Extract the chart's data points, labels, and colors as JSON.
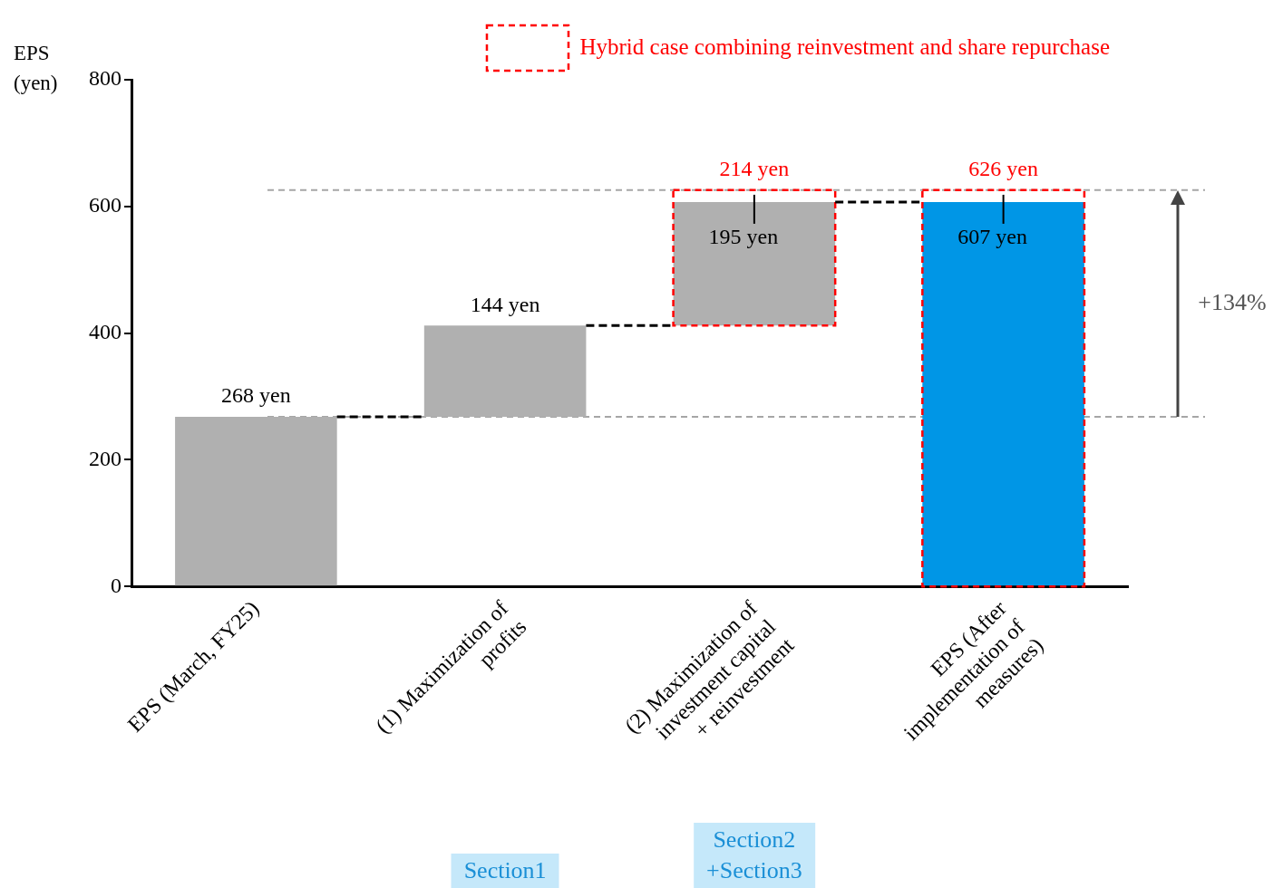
{
  "chart_data": {
    "type": "bar",
    "ylabel": "EPS\n(yen)",
    "categories": [
      "EPS (March, FY25)",
      "(1) Maximization of profits",
      "(2) Maximization of investment capital + reinvestment",
      "EPS (After implementation of measures)"
    ],
    "series": [
      {
        "colors": [
          "#b0b0b0",
          "#b0b0b0",
          "#b0b0b0",
          "#0096e6"
        ],
        "base": [
          0,
          268,
          412,
          0
        ],
        "values": [
          268,
          144,
          195,
          607
        ],
        "value_labels": [
          "268 yen",
          "144 yen",
          "195 yen",
          "607 yen"
        ]
      },
      {
        "name": "Hybrid case combining reinvestment and share repurchase",
        "color": "#ff0000",
        "line_style": "dashed",
        "base": [
          null,
          null,
          412,
          0
        ],
        "values": [
          null,
          null,
          214,
          626
        ],
        "value_labels": [
          null,
          null,
          "214 yen",
          "626 yen"
        ]
      }
    ],
    "ylim": [
      0,
      800
    ],
    "yticks": [
      0,
      200,
      400,
      600,
      800
    ],
    "ref_lines": [
      {
        "axis": "y",
        "value": 268,
        "color": "#a6a6a6",
        "line_style": "dashed"
      },
      {
        "axis": "y",
        "value": 626,
        "color": "#a6a6a6",
        "line_style": "dashed"
      }
    ],
    "annotations": [
      "+134%",
      "Section1",
      "Section2\n+Section3"
    ],
    "legend": "top right"
  }
}
